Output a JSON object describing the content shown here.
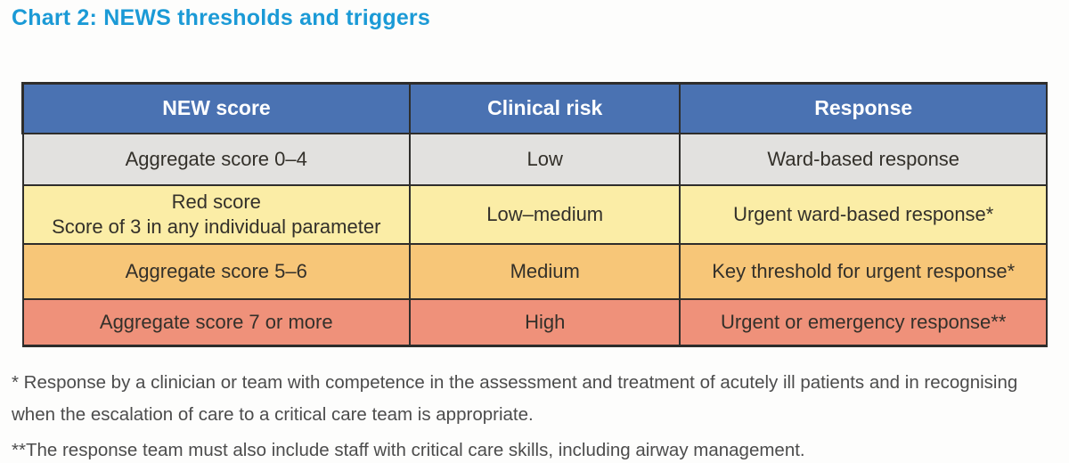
{
  "title": "Chart 2: NEWS thresholds and triggers",
  "colors": {
    "title": "#1b9ad6",
    "header_bg": "#4a72b2",
    "row_low_bg": "#e2e1df",
    "row_lowmed_bg": "#fbeda6",
    "row_med_bg": "#f7c678",
    "row_high_bg": "#ef917a"
  },
  "table": {
    "headers": {
      "score": "NEW score",
      "risk": "Clinical risk",
      "response": "Response"
    },
    "rows": [
      {
        "score": "Aggregate score 0–4",
        "risk": "Low",
        "response": "Ward-based response"
      },
      {
        "score_line1": "Red score",
        "score_line2": "Score of 3 in any individual parameter",
        "risk": "Low–medium",
        "response": "Urgent ward-based response*"
      },
      {
        "score": "Aggregate score 5–6",
        "risk": "Medium",
        "response": "Key threshold for urgent response*"
      },
      {
        "score": "Aggregate score 7 or more",
        "risk": "High",
        "response": "Urgent or emergency response**"
      }
    ]
  },
  "footnotes": [
    "* Response by a clinician or team with competence in the assessment and treatment of acutely ill patients and in recognising when the escalation of care to a critical care team is appropriate.",
    "**The response team must also include staff with critical care skills, including airway management."
  ]
}
